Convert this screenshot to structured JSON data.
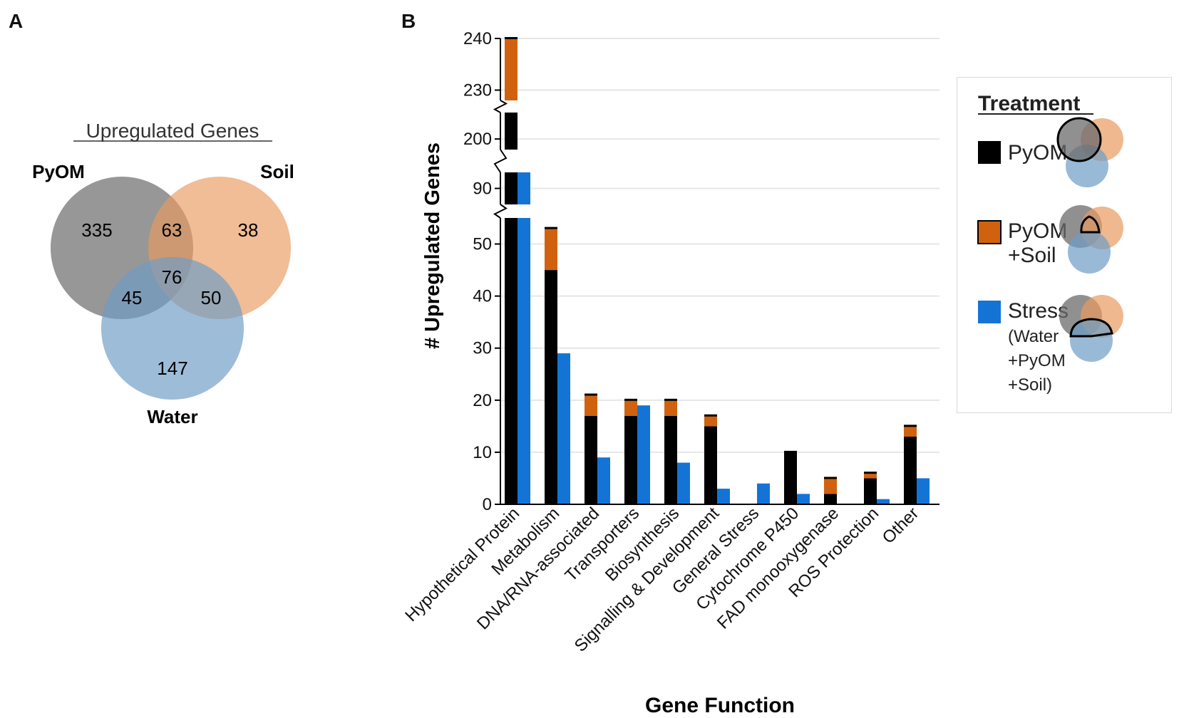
{
  "panels": {
    "a": "A",
    "b": "B"
  },
  "colors": {
    "pyom": "#000000",
    "pyom_soil": "#d0620f",
    "stress": "#1474d6",
    "venn_pyom": "#6b6b6b",
    "venn_soil": "#e89a5e",
    "venn_water": "#6e9cc6",
    "grid": "#e6e6e6"
  },
  "venn": {
    "title": "Upregulated Genes",
    "labels": {
      "pyom": "PyOM",
      "soil": "Soil",
      "water": "Water"
    },
    "regions": {
      "pyom_only": "335",
      "pyom_soil": "63",
      "soil_only": "38",
      "all_three": "76",
      "pyom_water": "45",
      "soil_water": "50",
      "water_only": "147"
    }
  },
  "chart_data": {
    "type": "bar",
    "title": "",
    "xlabel": "Gene Function",
    "ylabel": "# Upregulated Genes",
    "categories": [
      "Hypothetical Protein",
      "Metabolism",
      "DNA/RNA-associated",
      "Transporters",
      "Biosynthesis",
      "Signalling & Development",
      "General Stress",
      "Cytochrome P450",
      "FAD monooxygenase",
      "ROS Protection",
      "Other"
    ],
    "stacked_series": [
      {
        "name": "PyOM",
        "values": [
          222,
          45,
          17,
          17,
          17,
          15,
          0,
          10,
          2,
          5,
          13
        ]
      },
      {
        "name": "PyOM +Soil",
        "values": [
          18,
          8,
          4,
          3,
          3,
          2,
          0,
          0,
          3,
          1,
          2
        ]
      }
    ],
    "side_series": {
      "name": "Stress (Water +PyOM +Soil)",
      "values": [
        92,
        29,
        9,
        19,
        8,
        3,
        4,
        2,
        0,
        1,
        5
      ]
    },
    "axis_breaks": [
      [
        55,
        88
      ],
      [
        92,
        198
      ],
      [
        205,
        228
      ]
    ],
    "yticks": [
      0,
      10,
      20,
      30,
      40,
      50,
      90,
      200,
      230,
      240
    ],
    "ylim": [
      0,
      240
    ]
  },
  "legend": {
    "title": "Treatment",
    "items": [
      {
        "line1": "PyOM",
        "line2": ""
      },
      {
        "line1": "PyOM",
        "line2": "+Soil"
      },
      {
        "line1": "Stress",
        "sub1": "(Water",
        "sub2": "+PyOM",
        "sub3": "+Soil)"
      }
    ]
  }
}
